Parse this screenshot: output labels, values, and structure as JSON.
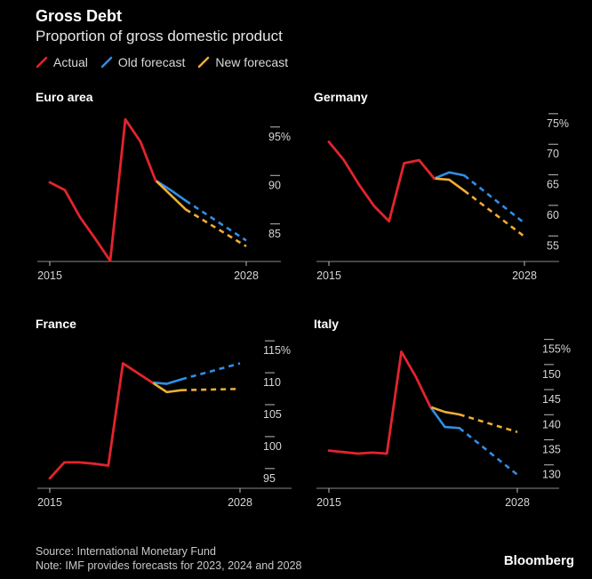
{
  "title": "Gross Debt",
  "subtitle": "Proportion of gross domestic product",
  "legend": [
    {
      "label": "Actual",
      "color": "#e3242b",
      "dash": false
    },
    {
      "label": "Old forecast",
      "color": "#2f8fe8",
      "dash": false
    },
    {
      "label": "New forecast",
      "color": "#f0ad35",
      "dash": false
    }
  ],
  "footer": {
    "source": "Source: International Monetary Fund",
    "note": "Note: IMF provides forecasts for 2023, 2024 and 2028"
  },
  "brand": "Bloomberg",
  "chart_data": [
    {
      "type": "line",
      "title": "Euro area",
      "x_ticks": [
        "2015",
        "2028"
      ],
      "y_ticks": [
        85,
        90,
        95
      ],
      "y_unit": "%",
      "ylim": [
        82.5,
        97
      ],
      "actual": {
        "x": [
          2015,
          2016,
          2017,
          2018,
          2019,
          2020,
          2021,
          2022
        ],
        "y": [
          90.3,
          89.5,
          86.7,
          84.5,
          82.2,
          96.8,
          94.5,
          90.5
        ]
      },
      "old_forecast": {
        "x": [
          2022,
          2023,
          2024,
          2028
        ],
        "y": [
          90.5,
          89.5,
          88.4,
          84.3
        ]
      },
      "new_forecast": {
        "x": [
          2022,
          2023,
          2024,
          2028
        ],
        "y": [
          90.5,
          89.0,
          87.5,
          83.7
        ]
      }
    },
    {
      "type": "line",
      "title": "Germany",
      "x_ticks": [
        "2015",
        "2028"
      ],
      "y_ticks": [
        55,
        60,
        65,
        70,
        75
      ],
      "y_unit": "%",
      "ylim": [
        53,
        76
      ],
      "actual": {
        "x": [
          2015,
          2016,
          2017,
          2018,
          2019,
          2020,
          2021,
          2022
        ],
        "y": [
          72.0,
          69.0,
          65.0,
          61.5,
          59.0,
          68.5,
          69.0,
          66.0
        ]
      },
      "old_forecast": {
        "x": [
          2022,
          2023,
          2024,
          2028
        ],
        "y": [
          66.0,
          67.0,
          66.5,
          58.7
        ]
      },
      "new_forecast": {
        "x": [
          2022,
          2023,
          2024,
          2028
        ],
        "y": [
          66.0,
          65.8,
          64.0,
          56.5
        ]
      }
    },
    {
      "type": "line",
      "title": "France",
      "x_ticks": [
        "2015",
        "2028"
      ],
      "y_ticks": [
        95,
        100,
        105,
        110,
        115
      ],
      "y_unit": "%",
      "ylim": [
        94,
        116
      ],
      "actual": {
        "x": [
          2015,
          2016,
          2017,
          2018,
          2019,
          2020,
          2021,
          2022
        ],
        "y": [
          95.0,
          97.5,
          97.5,
          97.3,
          97.0,
          113.0,
          111.5,
          110.0
        ]
      },
      "old_forecast": {
        "x": [
          2022,
          2023,
          2024,
          2028
        ],
        "y": [
          110.0,
          109.8,
          110.5,
          113.0
        ]
      },
      "new_forecast": {
        "x": [
          2022,
          2023,
          2024,
          2028
        ],
        "y": [
          110.0,
          108.5,
          108.8,
          109.0
        ]
      }
    },
    {
      "type": "line",
      "title": "Italy",
      "x_ticks": [
        "2015",
        "2028"
      ],
      "y_ticks": [
        130,
        135,
        140,
        145,
        150,
        155
      ],
      "y_unit": "%",
      "ylim": [
        128,
        156
      ],
      "actual": {
        "x": [
          2015,
          2016,
          2017,
          2018,
          2019,
          2020,
          2021,
          2022
        ],
        "y": [
          134.8,
          134.5,
          134.2,
          134.4,
          134.2,
          154.5,
          149.5,
          143.5
        ]
      },
      "old_forecast": {
        "x": [
          2022,
          2023,
          2024,
          2028
        ],
        "y": [
          143.5,
          139.5,
          139.3,
          130.0
        ]
      },
      "new_forecast": {
        "x": [
          2022,
          2023,
          2024,
          2028
        ],
        "y": [
          143.5,
          142.5,
          142.0,
          138.5
        ]
      }
    }
  ]
}
